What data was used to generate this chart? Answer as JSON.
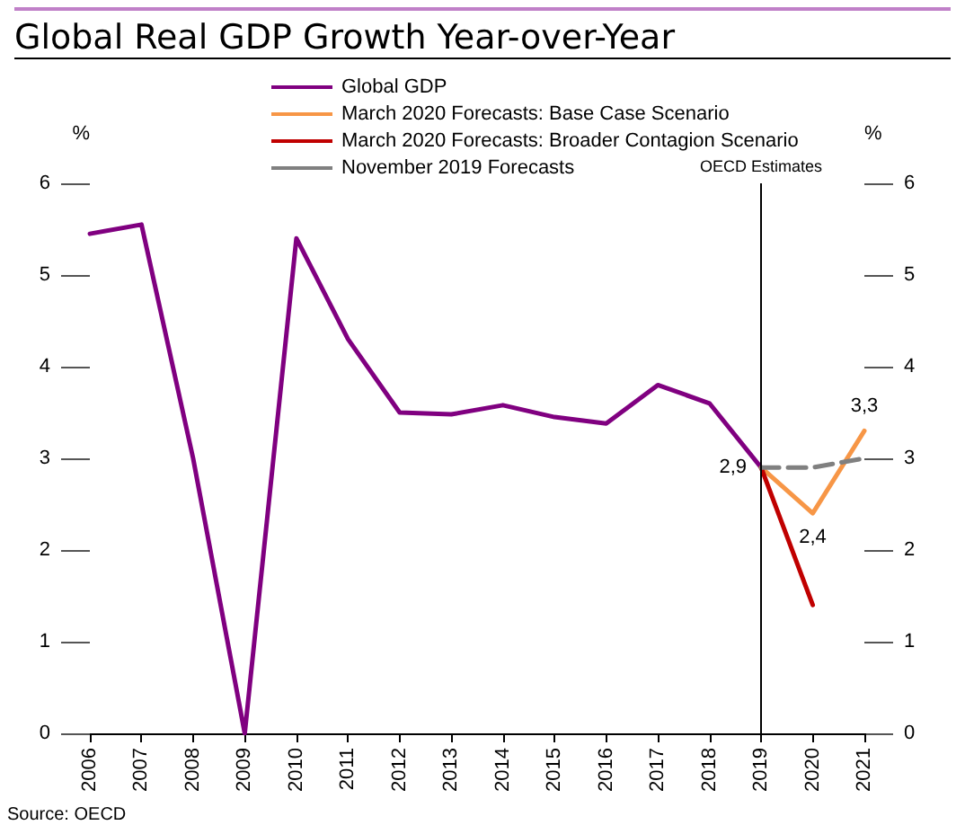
{
  "chart_data": {
    "type": "line",
    "title": "Global Real GDP Growth Year-over-Year",
    "ylabel": "%",
    "y2label": "%",
    "categories": [
      "2006",
      "2007",
      "2008",
      "2009",
      "2010",
      "2011",
      "2012",
      "2013",
      "2014",
      "2015",
      "2016",
      "2017",
      "2018",
      "2019",
      "2020",
      "2021"
    ],
    "series": [
      {
        "name": "Global GDP",
        "color": "#800080",
        "values": [
          5.45,
          5.55,
          3.0,
          0,
          5.4,
          4.3,
          3.5,
          3.48,
          3.58,
          3.45,
          3.38,
          3.8,
          3.6,
          2.9,
          null,
          null
        ],
        "value_labels": [
          null,
          null,
          null,
          null,
          null,
          null,
          null,
          null,
          null,
          null,
          null,
          null,
          null,
          "2,9",
          null,
          null
        ]
      },
      {
        "name": "March 2020 Forecasts: Base Case Scenario",
        "color": "#f79646",
        "values": [
          null,
          null,
          null,
          null,
          null,
          null,
          null,
          null,
          null,
          null,
          null,
          null,
          null,
          2.9,
          2.4,
          3.3
        ],
        "value_labels": [
          null,
          null,
          null,
          null,
          null,
          null,
          null,
          null,
          null,
          null,
          null,
          null,
          null,
          null,
          "2,4",
          "3,3"
        ]
      },
      {
        "name": "March 2020 Forecasts: Broader Contagion Scenario",
        "color": "#c00000",
        "values": [
          null,
          null,
          null,
          null,
          null,
          null,
          null,
          null,
          null,
          null,
          null,
          null,
          null,
          2.9,
          1.4,
          null
        ]
      },
      {
        "name": "November 2019 Forecasts",
        "color": "#808080",
        "line_style": "dashed",
        "values": [
          null,
          null,
          null,
          null,
          null,
          null,
          null,
          null,
          null,
          null,
          null,
          null,
          null,
          2.9,
          2.9,
          3.0
        ]
      }
    ],
    "ylim": [
      0,
      6
    ],
    "yticks": [
      0,
      1,
      2,
      3,
      4,
      5,
      6
    ],
    "y2lim": [
      0,
      6
    ],
    "y2ticks": [
      0,
      1,
      2,
      3,
      4,
      5,
      6
    ],
    "ref_lines": [
      {
        "axis": "x",
        "value": "2019",
        "label": "OECD Estimates",
        "color": "#000000"
      }
    ],
    "annotations": [
      "Source: OECD"
    ],
    "legend": "top",
    "grid": false,
    "marker": "none",
    "line_style": "solid"
  }
}
